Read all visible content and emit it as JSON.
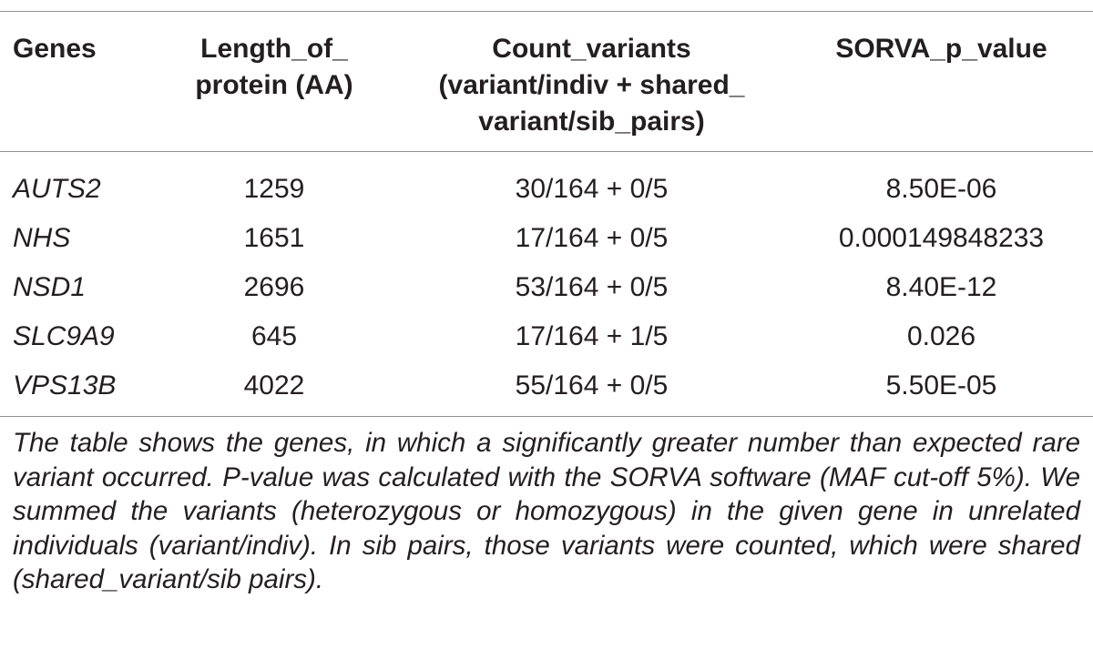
{
  "table": {
    "headers": [
      {
        "key": "gene",
        "lines": [
          "Genes"
        ]
      },
      {
        "key": "length",
        "lines": [
          "Length_of_",
          "protein (AA)"
        ]
      },
      {
        "key": "count",
        "lines": [
          "Count_variants",
          "(variant/indiv + shared_",
          "variant/sib_pairs)"
        ]
      },
      {
        "key": "pvalue",
        "lines": [
          "SORVA_p_value"
        ]
      }
    ],
    "rows": [
      {
        "gene": "AUTS2",
        "length": "1259",
        "count": "30/164 + 0/5",
        "pvalue": "8.50E-06"
      },
      {
        "gene": "NHS",
        "length": "1651",
        "count": "17/164 + 0/5",
        "pvalue": "0.000149848233"
      },
      {
        "gene": "NSD1",
        "length": "2696",
        "count": "53/164 + 0/5",
        "pvalue": "8.40E-12"
      },
      {
        "gene": "SLC9A9",
        "length": "645",
        "count": "17/164 + 1/5",
        "pvalue": "0.026"
      },
      {
        "gene": "VPS13B",
        "length": "4022",
        "count": "55/164 + 0/5",
        "pvalue": "5.50E-05"
      }
    ]
  },
  "footnote": "The table shows the genes, in which a significantly greater number than expected rare variant occurred. P-value was calculated with the SORVA software (MAF cut-off 5%). We summed the variants (heterozygous or homozygous) in the given gene in unrelated individuals (variant/indiv). In sib pairs, those variants were counted, which were shared (shared_variant/sib pairs)."
}
